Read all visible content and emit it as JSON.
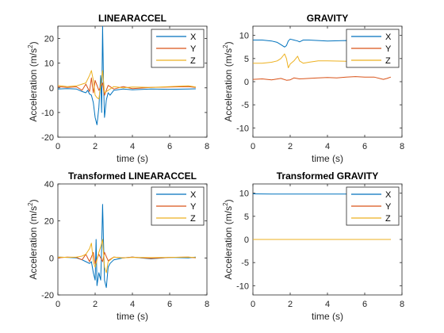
{
  "chart_data": [
    {
      "type": "line",
      "title": "LINEARACCEL",
      "xlabel": "time (s)",
      "ylabel_main": "Acceleration (m/s",
      "ylabel_sup": "2",
      "ylabel_close": ")",
      "xlim": [
        0,
        8
      ],
      "ylim": [
        -20,
        25
      ],
      "xticks": [
        "0",
        "2",
        "4",
        "6",
        "8"
      ],
      "xtick_values": [
        0,
        2,
        4,
        6,
        8
      ],
      "yticks": [
        "-20",
        "-10",
        "0",
        "10",
        "20"
      ],
      "ytick_values": [
        -20,
        -10,
        0,
        10,
        20
      ],
      "legend": "top-right",
      "series": [
        {
          "name": "X",
          "color": "#0072BD",
          "x": [
            0,
            0.5,
            1.0,
            1.3,
            1.5,
            1.6,
            1.7,
            1.8,
            1.9,
            2.0,
            2.1,
            2.2,
            2.3,
            2.35,
            2.4,
            2.45,
            2.5,
            2.6,
            2.7,
            2.8,
            3.0,
            3.5,
            4.0,
            5.0,
            6.0,
            7.0,
            7.4
          ],
          "y": [
            -0.5,
            -0.3,
            -0.5,
            -1.5,
            -2.0,
            -1.0,
            -2.5,
            -3.0,
            -6.0,
            -12.0,
            -15.0,
            -8.0,
            5.0,
            -10.0,
            25.0,
            2.0,
            -12.0,
            -5.0,
            -2.0,
            -3.0,
            -1.0,
            -0.5,
            -0.8,
            -0.5,
            -0.6,
            -0.5,
            -0.4
          ]
        },
        {
          "name": "Y",
          "color": "#D95319",
          "x": [
            0,
            0.5,
            1.0,
            1.3,
            1.5,
            1.7,
            1.8,
            1.9,
            2.0,
            2.2,
            2.4,
            2.5,
            2.7,
            3.0,
            3.5,
            4.0,
            5.0,
            6.0,
            7.0,
            7.4
          ],
          "y": [
            0.5,
            0.2,
            0.4,
            -1.0,
            1.5,
            -1.5,
            4.0,
            -2.0,
            3.0,
            -1.0,
            2.0,
            -3.0,
            1.0,
            -0.5,
            0.5,
            -0.3,
            0.2,
            0.3,
            0.5,
            0.2
          ]
        },
        {
          "name": "Z",
          "color": "#EDB120",
          "x": [
            0,
            0.5,
            1.0,
            1.3,
            1.5,
            1.7,
            1.8,
            1.9,
            2.0,
            2.1,
            2.2,
            2.3,
            2.4,
            2.5,
            2.7,
            3.0,
            3.5,
            4.0,
            5.0,
            6.0,
            7.0,
            7.4
          ],
          "y": [
            1.0,
            0.5,
            0.8,
            1.5,
            2.0,
            5.0,
            7.0,
            3.0,
            -3.0,
            -4.0,
            -4.5,
            1.0,
            7.0,
            -2.0,
            -1.0,
            0.5,
            0.0,
            0.3,
            0.2,
            0.5,
            0.8,
            0.3
          ]
        }
      ]
    },
    {
      "type": "line",
      "title": "GRAVITY",
      "xlabel": "time (s)",
      "ylabel_main": "Acceleration (m/s",
      "ylabel_sup": "2",
      "ylabel_close": ")",
      "xlim": [
        0,
        8
      ],
      "ylim": [
        -12,
        12
      ],
      "xticks": [
        "0",
        "2",
        "4",
        "6",
        "8"
      ],
      "xtick_values": [
        0,
        2,
        4,
        6,
        8
      ],
      "yticks": [
        "-10",
        "-5",
        "0",
        "5",
        "10"
      ],
      "ytick_values": [
        -10,
        -5,
        0,
        5,
        10
      ],
      "legend": "top-right",
      "series": [
        {
          "name": "X",
          "color": "#0072BD",
          "x": [
            0,
            0.5,
            1.0,
            1.3,
            1.5,
            1.7,
            1.8,
            1.9,
            2.0,
            2.2,
            2.4,
            2.5,
            2.7,
            3.0,
            4.0,
            5.0,
            6.0,
            7.0,
            7.4
          ],
          "y": [
            9.0,
            9.0,
            8.8,
            8.5,
            8.0,
            7.5,
            7.8,
            8.8,
            9.2,
            9.0,
            8.8,
            8.6,
            9.0,
            9.0,
            8.8,
            8.9,
            8.8,
            8.7,
            8.8
          ]
        },
        {
          "name": "Y",
          "color": "#D95319",
          "x": [
            0,
            0.5,
            1.0,
            1.5,
            1.8,
            2.0,
            2.2,
            2.5,
            3.0,
            3.5,
            4.0,
            4.5,
            5.0,
            5.5,
            6.0,
            6.5,
            7.0,
            7.2,
            7.4
          ],
          "y": [
            0.5,
            0.6,
            0.4,
            0.7,
            0.3,
            0.4,
            0.8,
            0.6,
            0.7,
            0.8,
            0.9,
            0.8,
            1.0,
            1.1,
            1.0,
            1.0,
            0.5,
            0.7,
            1.0
          ]
        },
        {
          "name": "Z",
          "color": "#EDB120",
          "x": [
            0,
            0.5,
            1.0,
            1.3,
            1.5,
            1.7,
            1.8,
            1.9,
            2.0,
            2.2,
            2.4,
            2.5,
            2.7,
            3.0,
            3.5,
            4.0,
            5.0,
            6.0,
            7.0,
            7.4
          ],
          "y": [
            4.0,
            4.0,
            4.2,
            4.5,
            5.0,
            6.0,
            5.0,
            3.0,
            3.8,
            4.5,
            5.5,
            4.5,
            4.0,
            4.2,
            4.5,
            4.5,
            4.4,
            4.5,
            4.3,
            4.5
          ]
        }
      ]
    },
    {
      "type": "line",
      "title": "Transformed LINEARACCEL",
      "xlabel": "time (s)",
      "ylabel_main": "Acceleration (m/s",
      "ylabel_sup": "2",
      "ylabel_close": ")",
      "xlim": [
        0,
        8
      ],
      "ylim": [
        -20,
        40
      ],
      "xticks": [
        "0",
        "2",
        "4",
        "6",
        "8"
      ],
      "xtick_values": [
        0,
        2,
        4,
        6,
        8
      ],
      "yticks": [
        "-20",
        "0",
        "20",
        "40"
      ],
      "ytick_values": [
        -20,
        0,
        20,
        40
      ],
      "legend": "top-right",
      "series": [
        {
          "name": "X",
          "color": "#0072BD",
          "x": [
            0,
            0.5,
            1.0,
            1.3,
            1.5,
            1.7,
            1.8,
            1.9,
            2.0,
            2.05,
            2.1,
            2.2,
            2.3,
            2.35,
            2.4,
            2.5,
            2.6,
            2.7,
            2.8,
            3.0,
            3.5,
            4.0,
            5.0,
            6.0,
            7.0,
            7.4
          ],
          "y": [
            0.5,
            0.3,
            0.0,
            -1.0,
            -2.0,
            -3.0,
            -2.0,
            -8.0,
            -12.0,
            10.0,
            -15.0,
            -8.0,
            -12.0,
            5.0,
            29.0,
            -12.0,
            -16.0,
            -5.0,
            -3.0,
            -1.0,
            0.0,
            0.5,
            -0.5,
            0.3,
            0.0,
            0.5
          ]
        },
        {
          "name": "Y",
          "color": "#D95319",
          "x": [
            0,
            0.5,
            1.0,
            1.3,
            1.5,
            1.7,
            1.9,
            2.0,
            2.2,
            2.4,
            2.5,
            2.7,
            3.0,
            3.5,
            4.0,
            5.0,
            6.0,
            7.0,
            7.4
          ],
          "y": [
            0.0,
            0.5,
            0.3,
            -1.0,
            2.0,
            -2.0,
            3.0,
            -3.0,
            2.0,
            -2.0,
            3.0,
            -1.5,
            0.5,
            0.0,
            0.5,
            -0.3,
            0.3,
            0.5,
            0.0
          ]
        },
        {
          "name": "Z",
          "color": "#EDB120",
          "x": [
            0,
            0.5,
            1.0,
            1.3,
            1.5,
            1.7,
            1.8,
            1.9,
            2.0,
            2.2,
            2.3,
            2.4,
            2.5,
            2.6,
            2.7,
            3.0,
            3.5,
            4.0,
            5.0,
            6.0,
            7.0,
            7.4
          ],
          "y": [
            0.5,
            0.3,
            0.5,
            1.0,
            2.0,
            5.0,
            8.0,
            -2.0,
            -5.0,
            3.0,
            6.0,
            10.0,
            -5.0,
            -8.0,
            -2.0,
            0.5,
            0.0,
            0.3,
            0.2,
            0.3,
            0.5,
            0.2
          ]
        }
      ]
    },
    {
      "type": "line",
      "title": "Transformed GRAVITY",
      "xlabel": "time (s)",
      "ylabel_main": "Acceleration (m/s",
      "ylabel_sup": "2",
      "ylabel_close": ")",
      "xlim": [
        0,
        8
      ],
      "ylim": [
        -12,
        12
      ],
      "xticks": [
        "0",
        "2",
        "4",
        "6",
        "8"
      ],
      "xtick_values": [
        0,
        2,
        4,
        6,
        8
      ],
      "yticks": [
        "-10",
        "-5",
        "0",
        "5",
        "10"
      ],
      "ytick_values": [
        -10,
        -5,
        0,
        5,
        10
      ],
      "legend": "top-right",
      "series": [
        {
          "name": "X",
          "color": "#0072BD",
          "x": [
            0,
            1.0,
            2.0,
            3.0,
            4.0,
            5.0,
            6.0,
            7.0,
            7.4
          ],
          "y": [
            9.85,
            9.8,
            9.83,
            9.8,
            9.82,
            9.8,
            9.81,
            9.8,
            9.8
          ]
        },
        {
          "name": "Y",
          "color": "#D95319",
          "x": [
            0,
            7.4
          ],
          "y": [
            0.0,
            0.0
          ]
        },
        {
          "name": "Z",
          "color": "#EDB120",
          "x": [
            0,
            7.4
          ],
          "y": [
            0.0,
            0.0
          ]
        }
      ]
    }
  ]
}
